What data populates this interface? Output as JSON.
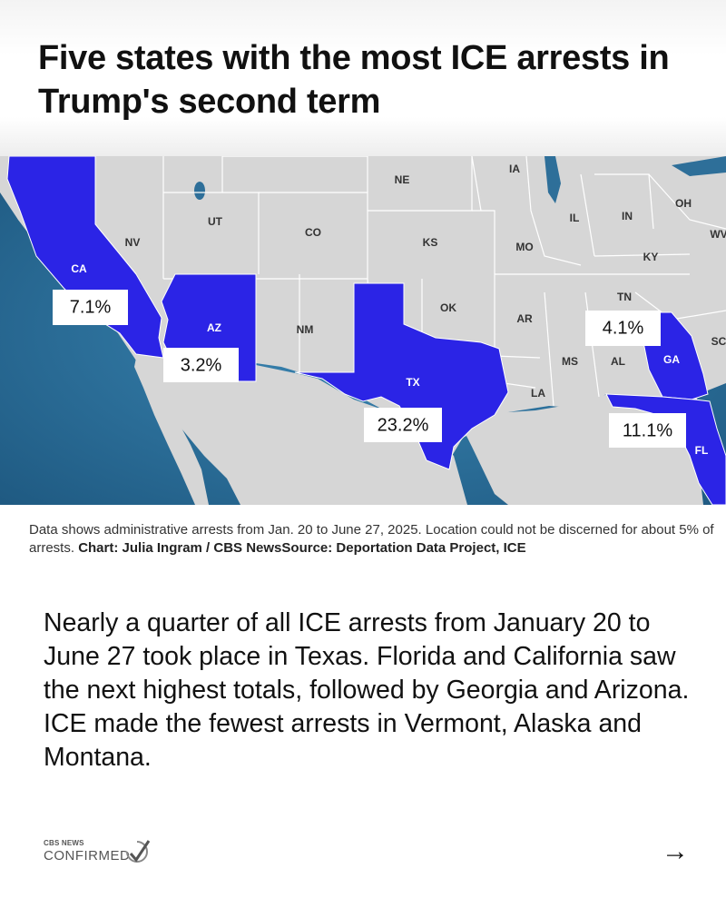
{
  "title": "Five states with the most ICE arrests in Trump's second term",
  "map": {
    "highlight_color": "#2b24e6",
    "land_color": "#d6d6d6",
    "water_color": "#2e6f99",
    "state_labels": [
      "NE",
      "IA",
      "IL",
      "IN",
      "OH",
      "WV",
      "UT",
      "NV",
      "CO",
      "KS",
      "MO",
      "KY",
      "CA",
      "TN",
      "OK",
      "AR",
      "NM",
      "AZ",
      "MS",
      "AL",
      "GA",
      "SC",
      "TX",
      "LA",
      "FL"
    ],
    "highlighted": [
      {
        "state": "TX",
        "value": "23.2%"
      },
      {
        "state": "FL",
        "value": "11.1%"
      },
      {
        "state": "CA",
        "value": "7.1%"
      },
      {
        "state": "GA",
        "value": "4.1%"
      },
      {
        "state": "AZ",
        "value": "3.2%"
      }
    ]
  },
  "caption": {
    "note": "Data shows administrative arrests from Jan. 20 to June 27, 2025. Location could not be discerned for about 5% of arrests. ",
    "credit": "Chart: Julia Ingram / CBS NewsSource: Deportation Data Project, ICE"
  },
  "body": "Nearly a quarter of all ICE arrests from January 20 to June 27 took place in Texas. Florida and California saw the next highest totals, followed by Georgia and Arizona. ICE made the fewest arrests in Vermont, Alaska and Montana.",
  "logo": {
    "small": "CBS NEWS",
    "big": "CONFIRMED"
  },
  "next_icon": "arrow-right-icon",
  "next_glyph": "→"
}
